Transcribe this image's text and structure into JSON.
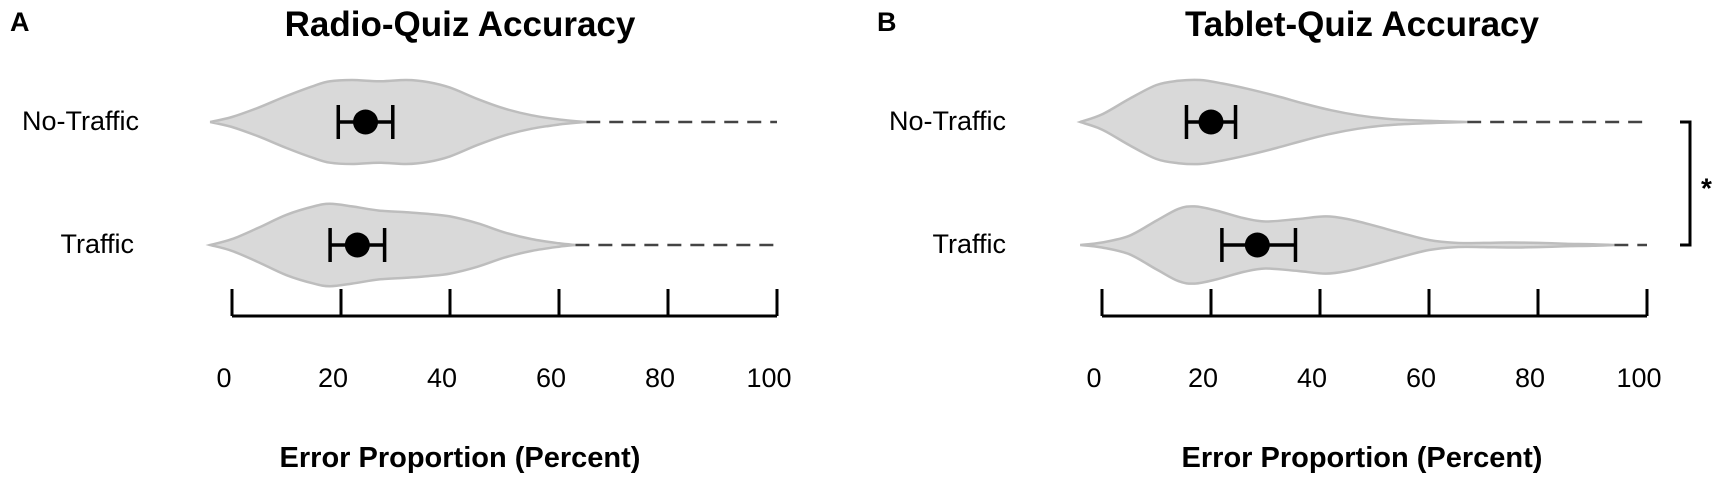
{
  "colors": {
    "violin_fill": "#d9d9d9",
    "violin_stroke": "#bdbdbd",
    "dash": "#444444",
    "ink": "#000000"
  },
  "chart_data": [
    {
      "type": "violin",
      "panel_label": "A",
      "title": "Radio-Quiz Accuracy",
      "xlabel": "Error Proportion (Percent)",
      "ylabel": "",
      "xlim": [
        0,
        100
      ],
      "x_ticks": [
        "0",
        "20",
        "40",
        "60",
        "80",
        "100"
      ],
      "groups": [
        {
          "name": "No-Traffic",
          "mean": 24.5,
          "ci": [
            19.5,
            29.5
          ],
          "dashed_range": [
            65,
            100
          ],
          "density": [
            [
              -4,
              0
            ],
            [
              0,
              0.12
            ],
            [
              5,
              0.35
            ],
            [
              10,
              0.62
            ],
            [
              15,
              0.86
            ],
            [
              18,
              0.97
            ],
            [
              22,
              1.0
            ],
            [
              27,
              0.97
            ],
            [
              32,
              1.0
            ],
            [
              36,
              0.95
            ],
            [
              40,
              0.82
            ],
            [
              45,
              0.55
            ],
            [
              50,
              0.32
            ],
            [
              55,
              0.16
            ],
            [
              60,
              0.06
            ],
            [
              64,
              0.01
            ],
            [
              65,
              0
            ]
          ]
        },
        {
          "name": "Traffic",
          "mean": 23,
          "ci": [
            18,
            28
          ],
          "dashed_range": [
            63,
            100
          ],
          "density": [
            [
              -4,
              0
            ],
            [
              0,
              0.14
            ],
            [
              5,
              0.42
            ],
            [
              10,
              0.72
            ],
            [
              15,
              0.92
            ],
            [
              18,
              0.98
            ],
            [
              22,
              0.92
            ],
            [
              27,
              0.82
            ],
            [
              32,
              0.78
            ],
            [
              36,
              0.74
            ],
            [
              40,
              0.68
            ],
            [
              45,
              0.52
            ],
            [
              50,
              0.3
            ],
            [
              55,
              0.14
            ],
            [
              60,
              0.04
            ],
            [
              63,
              0
            ]
          ]
        }
      ],
      "significance": null
    },
    {
      "type": "violin",
      "panel_label": "B",
      "title": "Tablet-Quiz Accuracy",
      "xlabel": "Error Proportion (Percent)",
      "ylabel": "",
      "xlim": [
        0,
        100
      ],
      "x_ticks": [
        "0",
        "20",
        "40",
        "60",
        "80",
        "100"
      ],
      "groups": [
        {
          "name": "No-Traffic",
          "mean": 20,
          "ci": [
            15.5,
            24.5
          ],
          "dashed_range": [
            67,
            100
          ],
          "density": [
            [
              -4,
              0
            ],
            [
              0,
              0.18
            ],
            [
              5,
              0.55
            ],
            [
              10,
              0.88
            ],
            [
              14,
              0.98
            ],
            [
              18,
              1.0
            ],
            [
              22,
              0.92
            ],
            [
              27,
              0.78
            ],
            [
              32,
              0.62
            ],
            [
              37,
              0.44
            ],
            [
              42,
              0.28
            ],
            [
              47,
              0.16
            ],
            [
              52,
              0.08
            ],
            [
              57,
              0.04
            ],
            [
              62,
              0.02
            ],
            [
              67,
              0
            ]
          ]
        },
        {
          "name": "Traffic",
          "mean": 28.5,
          "ci": [
            22,
            35.5
          ],
          "dashed_range": [
            94,
            100
          ],
          "density": [
            [
              -4,
              0
            ],
            [
              0,
              0.06
            ],
            [
              5,
              0.22
            ],
            [
              10,
              0.58
            ],
            [
              14,
              0.86
            ],
            [
              17,
              0.92
            ],
            [
              21,
              0.82
            ],
            [
              26,
              0.64
            ],
            [
              30,
              0.56
            ],
            [
              36,
              0.62
            ],
            [
              41,
              0.68
            ],
            [
              45,
              0.62
            ],
            [
              50,
              0.46
            ],
            [
              55,
              0.28
            ],
            [
              60,
              0.12
            ],
            [
              65,
              0.05
            ],
            [
              70,
              0.05
            ],
            [
              75,
              0.06
            ],
            [
              80,
              0.05
            ],
            [
              85,
              0.03
            ],
            [
              90,
              0.02
            ],
            [
              94,
              0
            ]
          ]
        }
      ],
      "significance": {
        "label": "*",
        "between": [
          "No-Traffic",
          "Traffic"
        ]
      }
    }
  ]
}
